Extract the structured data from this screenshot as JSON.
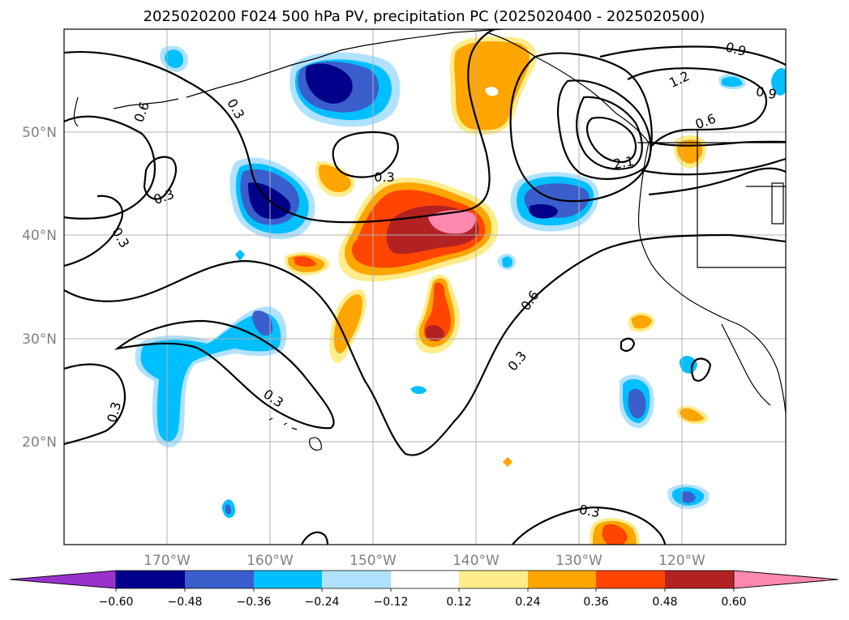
{
  "title": "2025020200 F024 500 hPa PV, precipitation PC (2025020400 - 2025020500)",
  "lat_labels": [
    "50°N",
    "40°N",
    "30°N",
    "20°N"
  ],
  "lon_labels": [
    "170°W",
    "160°W",
    "150°W",
    "140°W",
    "130°W",
    "120°W"
  ],
  "contour_labels": [
    "0.9",
    "0.9",
    "1.2",
    "0.6",
    "0.6",
    "0.3",
    "2.1",
    "0.3",
    "0.3",
    "0.3",
    "0.6",
    "0.3",
    "0.3",
    "0.3",
    "0.3"
  ],
  "colorbar": {
    "ticks": [
      "−0.60",
      "−0.48",
      "−0.36",
      "−0.24",
      "−0.12",
      "0.12",
      "0.24",
      "0.36",
      "0.48",
      "0.60"
    ],
    "colors": [
      "#9932cc",
      "#00008b",
      "#3a5fcd",
      "#00bfff",
      "#b0e2ff",
      "#ffffff",
      "#ffec8b",
      "#ffa500",
      "#ff4500",
      "#b22222",
      "#ff88b0"
    ]
  },
  "map": {
    "extent_lon": [
      -180,
      -110
    ],
    "extent_lat": [
      10,
      60
    ],
    "projection": "PlateCarree",
    "gridlines": true
  }
}
